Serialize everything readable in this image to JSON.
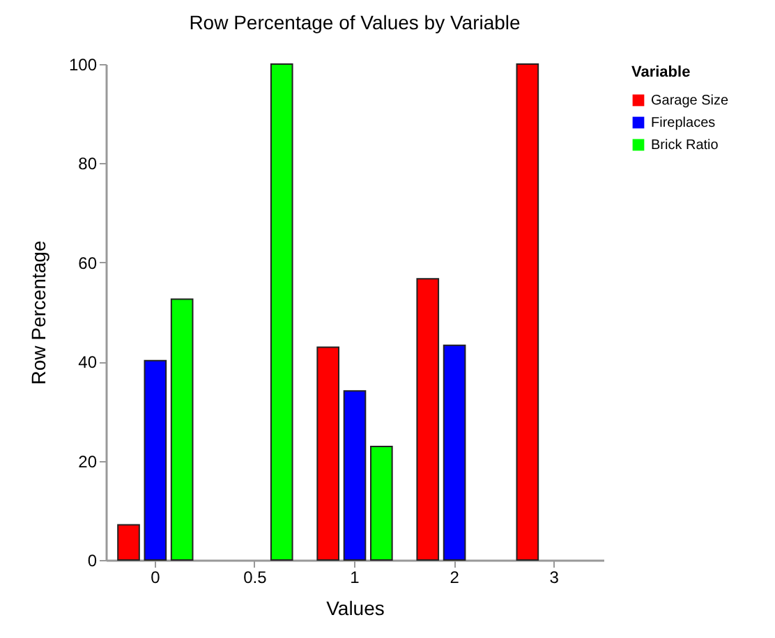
{
  "chart_data": {
    "type": "bar",
    "title": "Row Percentage of Values by Variable",
    "xlabel": "Values",
    "ylabel": "Row Percentage",
    "legend_title": "Variable",
    "categories": [
      "0",
      "0.5",
      "1",
      "2",
      "3"
    ],
    "series": [
      {
        "name": "Garage Size",
        "color": "#ff0000",
        "values": [
          7.1,
          null,
          42.9,
          56.7,
          100
        ]
      },
      {
        "name": "Fireplaces",
        "color": "#0000ff",
        "values": [
          40.2,
          null,
          34.1,
          43.3,
          null
        ]
      },
      {
        "name": "Brick Ratio",
        "color": "#00ff00",
        "values": [
          52.6,
          100,
          22.9,
          null,
          null
        ]
      }
    ],
    "ylim": [
      0,
      100
    ],
    "yticks": [
      0,
      20,
      40,
      60,
      80,
      100
    ],
    "grid": false,
    "legend": "right"
  }
}
